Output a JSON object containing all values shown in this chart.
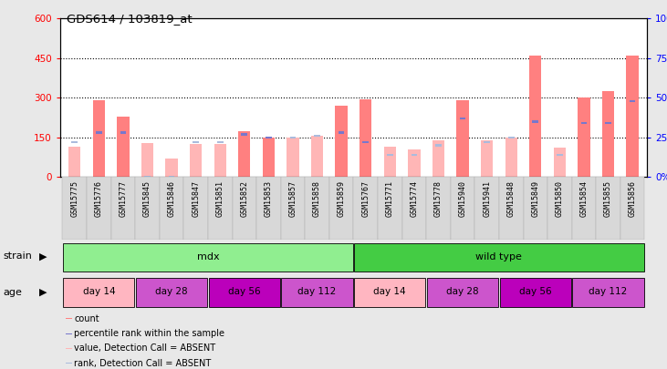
{
  "title": "GDS614 / 103819_at",
  "samples": [
    "GSM15775",
    "GSM15776",
    "GSM15777",
    "GSM15845",
    "GSM15846",
    "GSM15847",
    "GSM15851",
    "GSM15852",
    "GSM15853",
    "GSM15857",
    "GSM15858",
    "GSM15859",
    "GSM15767",
    "GSM15771",
    "GSM15774",
    "GSM15778",
    "GSM15940",
    "GSM15941",
    "GSM15848",
    "GSM15849",
    "GSM15850",
    "GSM15854",
    "GSM15855",
    "GSM15856"
  ],
  "count_values": [
    115,
    290,
    230,
    130,
    70,
    125,
    125,
    175,
    148,
    148,
    155,
    270,
    295,
    115,
    105,
    140,
    290,
    140,
    150,
    460,
    110,
    300,
    325,
    460
  ],
  "rank_values": [
    22,
    28,
    28,
    0,
    0,
    22,
    22,
    27,
    25,
    25,
    26,
    28,
    22,
    14,
    14,
    20,
    37,
    22,
    25,
    35,
    14,
    34,
    34,
    48
  ],
  "absent_flags": [
    true,
    false,
    false,
    true,
    true,
    true,
    true,
    false,
    false,
    true,
    true,
    false,
    false,
    true,
    true,
    true,
    false,
    true,
    true,
    false,
    true,
    false,
    false,
    false
  ],
  "strain_groups": [
    {
      "label": "mdx",
      "start": 0,
      "end": 12,
      "color": "#90EE90"
    },
    {
      "label": "wild type",
      "start": 12,
      "end": 24,
      "color": "#44CC44"
    }
  ],
  "age_groups": [
    {
      "label": "day 14",
      "start": 0,
      "end": 3,
      "color": "#FFB6C1"
    },
    {
      "label": "day 28",
      "start": 3,
      "end": 6,
      "color": "#CC55CC"
    },
    {
      "label": "day 56",
      "start": 6,
      "end": 9,
      "color": "#BB00BB"
    },
    {
      "label": "day 112",
      "start": 9,
      "end": 12,
      "color": "#CC55CC"
    },
    {
      "label": "day 14",
      "start": 12,
      "end": 15,
      "color": "#FFB6C1"
    },
    {
      "label": "day 28",
      "start": 15,
      "end": 18,
      "color": "#CC55CC"
    },
    {
      "label": "day 56",
      "start": 18,
      "end": 21,
      "color": "#BB00BB"
    },
    {
      "label": "day 112",
      "start": 21,
      "end": 24,
      "color": "#CC55CC"
    }
  ],
  "bar_color_present": "#FF8080",
  "bar_color_absent": "#FFB6B6",
  "rank_color_present": "#7777CC",
  "rank_color_absent": "#AABBDD",
  "ylim_left": [
    0,
    600
  ],
  "ylim_right": [
    0,
    100
  ],
  "yticks_left": [
    0,
    150,
    300,
    450,
    600
  ],
  "yticks_right": [
    0,
    25,
    50,
    75,
    100
  ],
  "background_color": "#E8E8E8",
  "plot_bg": "#FFFFFF",
  "legend_items": [
    {
      "label": "count",
      "color": "#FF8080"
    },
    {
      "label": "percentile rank within the sample",
      "color": "#7777CC"
    },
    {
      "label": "value, Detection Call = ABSENT",
      "color": "#FFB6B6"
    },
    {
      "label": "rank, Detection Call = ABSENT",
      "color": "#AABBDD"
    }
  ]
}
